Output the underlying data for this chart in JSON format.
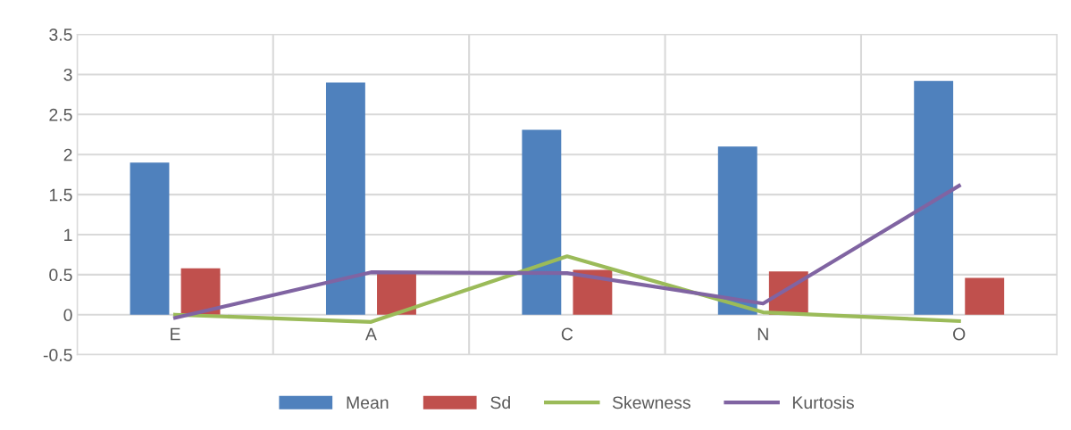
{
  "chart_data": {
    "type": "bar",
    "categories": [
      "E",
      "A",
      "C",
      "N",
      "O"
    ],
    "series": [
      {
        "name": "Mean",
        "color": "#4f81bd",
        "values": [
          1.9,
          2.9,
          2.31,
          2.1,
          2.92
        ]
      },
      {
        "name": "Sd",
        "color": "#c0504d",
        "values": [
          0.58,
          0.52,
          0.56,
          0.54,
          0.46
        ]
      },
      {
        "name": "Skewness",
        "type": "line",
        "color": "#9bbb59",
        "values": [
          0.0,
          -0.09,
          0.73,
          0.03,
          -0.08
        ]
      },
      {
        "name": "Kurtosis",
        "type": "line",
        "color": "#8064a2",
        "values": [
          -0.04,
          0.53,
          0.52,
          0.14,
          1.61
        ]
      }
    ],
    "ylim": [
      -0.5,
      3.5
    ],
    "yticks": [
      -0.5,
      0,
      0.5,
      1,
      1.5,
      2,
      2.5,
      3,
      3.5
    ],
    "grid": true,
    "legend": "bottom",
    "marker": "none",
    "line_style": "solid"
  }
}
